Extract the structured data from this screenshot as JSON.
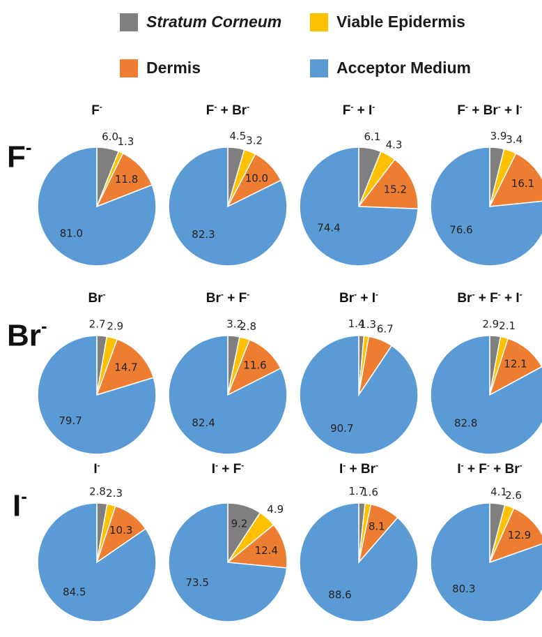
{
  "legend": [
    {
      "label": "Stratum Corneum",
      "italic": true,
      "color": "#7f7f7f"
    },
    {
      "label": "Viable Epidermis",
      "italic": false,
      "color": "#ffc000"
    },
    {
      "label": "Dermis",
      "italic": false,
      "color": "#ed7d31"
    },
    {
      "label": "Acceptor Medium",
      "italic": false,
      "color": "#5b9bd5"
    }
  ],
  "row_labels": [
    {
      "base": "F",
      "sup": "-"
    },
    {
      "base": "Br",
      "sup": "-"
    },
    {
      "base": "I",
      "sup": "-"
    }
  ],
  "chart_data": {
    "type": "pie",
    "series_names": [
      "Stratum Corneum",
      "Viable Epidermis",
      "Dermis",
      "Acceptor Medium"
    ],
    "colors": [
      "#7f7f7f",
      "#ffc000",
      "#ed7d31",
      "#5b9bd5"
    ],
    "pies": [
      {
        "title": [
          {
            "t": "F",
            "s": "-"
          }
        ],
        "values": [
          6.0,
          1.3,
          11.8,
          81.0
        ],
        "labels": [
          "6.0",
          "1.3",
          "11.8",
          "81.0"
        ]
      },
      {
        "title": [
          {
            "t": "F",
            "s": "-"
          },
          {
            "t": " + "
          },
          {
            "t": "Br",
            "s": "-"
          }
        ],
        "values": [
          4.5,
          3.2,
          10.0,
          82.3
        ],
        "labels": [
          "4.5",
          "3.2",
          "10.0",
          "82.3"
        ]
      },
      {
        "title": [
          {
            "t": "F",
            "s": "-"
          },
          {
            "t": " + "
          },
          {
            "t": "I",
            "s": "-"
          }
        ],
        "values": [
          6.1,
          4.3,
          15.2,
          74.4
        ],
        "labels": [
          "6.1",
          "4.3",
          "15.2",
          "74.4"
        ]
      },
      {
        "title": [
          {
            "t": "F",
            "s": "-"
          },
          {
            "t": " + "
          },
          {
            "t": "Br",
            "s": "-"
          },
          {
            "t": " + "
          },
          {
            "t": "I",
            "s": "-"
          }
        ],
        "values": [
          3.9,
          3.4,
          16.1,
          76.6
        ],
        "labels": [
          "3.9",
          "3.4",
          "16.1",
          "76.6"
        ]
      },
      {
        "title": [
          {
            "t": "Br",
            "s": "-"
          }
        ],
        "values": [
          2.7,
          2.9,
          14.7,
          79.7
        ],
        "labels": [
          "2.7",
          "2.9",
          "14.7",
          "79.7"
        ]
      },
      {
        "title": [
          {
            "t": "Br",
            "s": "-"
          },
          {
            "t": " + "
          },
          {
            "t": "F",
            "s": "-"
          }
        ],
        "values": [
          3.2,
          2.8,
          11.6,
          82.4
        ],
        "labels": [
          "3.2",
          "2.8",
          "11.6",
          "82.4"
        ]
      },
      {
        "title": [
          {
            "t": "Br",
            "s": "-"
          },
          {
            "t": " + "
          },
          {
            "t": "I",
            "s": "-"
          }
        ],
        "values": [
          1.4,
          1.3,
          6.7,
          90.7
        ],
        "labels": [
          "1.4",
          "1.3",
          "6.7",
          "90.7"
        ]
      },
      {
        "title": [
          {
            "t": "Br",
            "s": "-"
          },
          {
            "t": " + "
          },
          {
            "t": "F",
            "s": "-"
          },
          {
            "t": " + "
          },
          {
            "t": "I",
            "s": "-"
          }
        ],
        "values": [
          2.9,
          2.1,
          12.1,
          82.8
        ],
        "labels": [
          "2.9",
          "2.1",
          "12.1",
          "82.8"
        ]
      },
      {
        "title": [
          {
            "t": "I",
            "s": "-"
          }
        ],
        "values": [
          2.8,
          2.3,
          10.3,
          84.5
        ],
        "labels": [
          "2.8",
          "2.3",
          "10.3",
          "84.5"
        ]
      },
      {
        "title": [
          {
            "t": "I",
            "s": "-"
          },
          {
            "t": " + "
          },
          {
            "t": "F",
            "s": "-"
          }
        ],
        "values": [
          9.2,
          4.9,
          12.4,
          73.5
        ],
        "labels": [
          "9.2",
          "4.9",
          "12.4",
          "73.5"
        ]
      },
      {
        "title": [
          {
            "t": "I",
            "s": "-"
          },
          {
            "t": " + "
          },
          {
            "t": "Br",
            "s": "-"
          }
        ],
        "values": [
          1.7,
          1.6,
          8.1,
          88.6
        ],
        "labels": [
          "1.7",
          "1.6",
          "8.1",
          "88.6"
        ]
      },
      {
        "title": [
          {
            "t": "I",
            "s": "-"
          },
          {
            "t": " + "
          },
          {
            "t": "F",
            "s": "-"
          },
          {
            "t": " + "
          },
          {
            "t": "Br",
            "s": "-"
          }
        ],
        "values": [
          4.1,
          2.6,
          12.9,
          80.3
        ],
        "labels": [
          "4.1",
          "2.6",
          "12.9",
          "80.3"
        ]
      }
    ]
  }
}
